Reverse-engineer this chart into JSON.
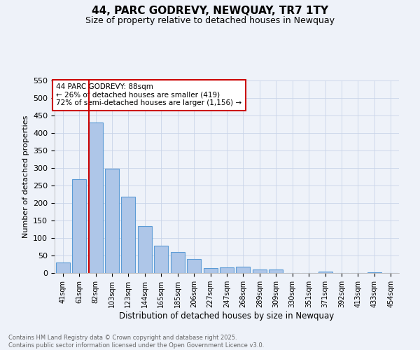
{
  "title": "44, PARC GODREVY, NEWQUAY, TR7 1TY",
  "subtitle": "Size of property relative to detached houses in Newquay",
  "xlabel": "Distribution of detached houses by size in Newquay",
  "ylabel": "Number of detached properties",
  "bar_labels": [
    "41sqm",
    "61sqm",
    "82sqm",
    "103sqm",
    "123sqm",
    "144sqm",
    "165sqm",
    "185sqm",
    "206sqm",
    "227sqm",
    "247sqm",
    "268sqm",
    "289sqm",
    "309sqm",
    "330sqm",
    "351sqm",
    "371sqm",
    "392sqm",
    "413sqm",
    "433sqm",
    "454sqm"
  ],
  "bar_values": [
    30,
    268,
    430,
    298,
    218,
    135,
    78,
    60,
    40,
    15,
    16,
    18,
    10,
    10,
    0,
    0,
    5,
    0,
    0,
    3,
    0
  ],
  "bar_color": "#aec6e8",
  "bar_edge_color": "#5b9bd5",
  "vline_color": "#cc0000",
  "annotation_title": "44 PARC GODREVY: 88sqm",
  "annotation_line1": "← 26% of detached houses are smaller (419)",
  "annotation_line2": "72% of semi-detached houses are larger (1,156) →",
  "annotation_box_color": "#cc0000",
  "ylim": [
    0,
    550
  ],
  "yticks": [
    0,
    50,
    100,
    150,
    200,
    250,
    300,
    350,
    400,
    450,
    500,
    550
  ],
  "footer_line1": "Contains HM Land Registry data © Crown copyright and database right 2025.",
  "footer_line2": "Contains public sector information licensed under the Open Government Licence v3.0.",
  "bg_color": "#eef2f9",
  "grid_color": "#c8d4e8"
}
